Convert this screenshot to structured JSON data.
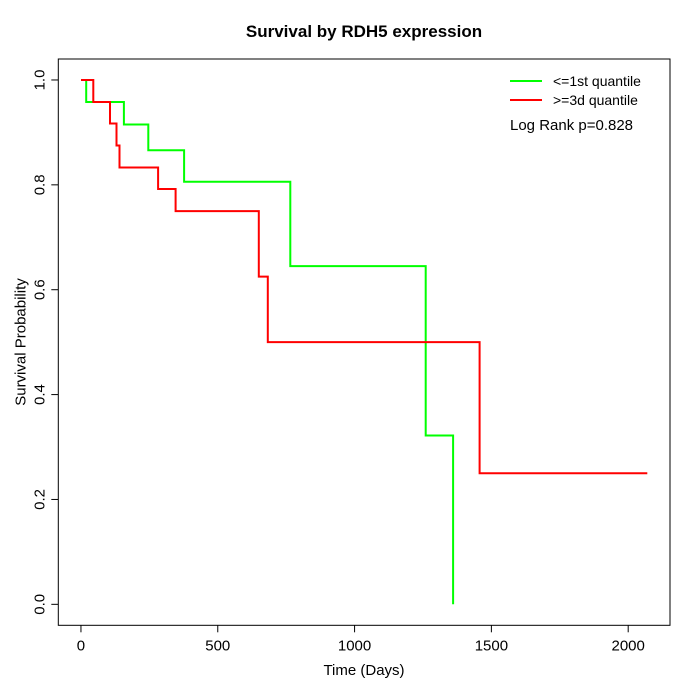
{
  "title": "Survival by RDH5 expression",
  "axes": {
    "xlabel": "Time (Days)",
    "ylabel": "Survival Probability",
    "x_ticks": [
      0,
      500,
      1000,
      1500,
      2000
    ],
    "y_tick_labels": [
      "0.0",
      "0.2",
      "0.4",
      "0.6",
      "0.8",
      "1.0"
    ]
  },
  "legend": {
    "items": [
      {
        "label": "<=1st quantile",
        "color": "#00ff00"
      },
      {
        "label": ">=3d quantile",
        "color": "#ff0000"
      }
    ],
    "note": "Log Rank p=0.828"
  },
  "chart_data": {
    "type": "line",
    "subtype": "kaplan-meier-step",
    "title": "Survival by RDH5 expression",
    "xlabel": "Time (Days)",
    "ylabel": "Survival Probability",
    "xlim": [
      0,
      2070
    ],
    "ylim": [
      0,
      1
    ],
    "grid": false,
    "legend_position": "top-right",
    "annotation": "Log Rank p=0.828",
    "series": [
      {
        "name": "<=1st quantile",
        "color": "#00ff00",
        "x": [
          0,
          19,
          157,
          246,
          377,
          765,
          1260,
          1360
        ],
        "y": [
          1.0,
          0.958,
          0.915,
          0.866,
          0.806,
          0.645,
          0.322,
          0.0
        ]
      },
      {
        "name": ">=3d quantile",
        "color": "#ff0000",
        "x": [
          0,
          45,
          106,
          130,
          141,
          282,
          346,
          650,
          683,
          1457,
          2070
        ],
        "y": [
          1.0,
          0.958,
          0.917,
          0.875,
          0.833,
          0.792,
          0.75,
          0.625,
          0.5,
          0.25,
          0.25
        ]
      }
    ]
  }
}
